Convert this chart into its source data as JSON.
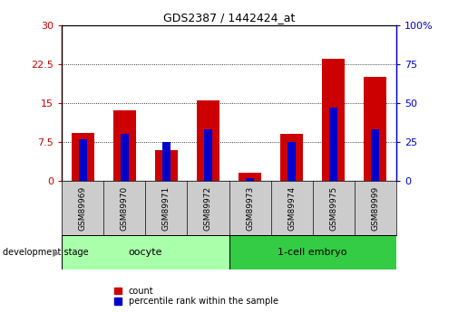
{
  "title": "GDS2387 / 1442424_at",
  "samples": [
    "GSM89969",
    "GSM89970",
    "GSM89971",
    "GSM89972",
    "GSM89973",
    "GSM89974",
    "GSM89975",
    "GSM89999"
  ],
  "count_values": [
    9.2,
    13.5,
    6.0,
    15.5,
    1.5,
    9.0,
    23.5,
    20.0
  ],
  "percentile_values": [
    27,
    30,
    25,
    33,
    2,
    25,
    47,
    33
  ],
  "groups": [
    {
      "label": "oocyte",
      "start": 0,
      "end": 3,
      "color": "#aaffaa"
    },
    {
      "label": "1-cell embryo",
      "start": 4,
      "end": 7,
      "color": "#33cc44"
    }
  ],
  "group_label": "development stage",
  "ylim_left": [
    0,
    30
  ],
  "ylim_right": [
    0,
    100
  ],
  "yticks_left": [
    0,
    7.5,
    15,
    22.5,
    30
  ],
  "yticks_right": [
    0,
    25,
    50,
    75,
    100
  ],
  "left_tick_labels": [
    "0",
    "7.5",
    "15",
    "22.5",
    "30"
  ],
  "right_tick_labels": [
    "0",
    "25",
    "50",
    "75",
    "100%"
  ],
  "left_color": "#cc0000",
  "right_color": "#0000cc",
  "bar_color": "#cc0000",
  "percentile_color": "#0000cc",
  "background_color": "#ffffff",
  "label_box_color": "#cccccc",
  "legend_items": [
    "count",
    "percentile rank within the sample"
  ],
  "legend_colors": [
    "#cc0000",
    "#0000cc"
  ]
}
